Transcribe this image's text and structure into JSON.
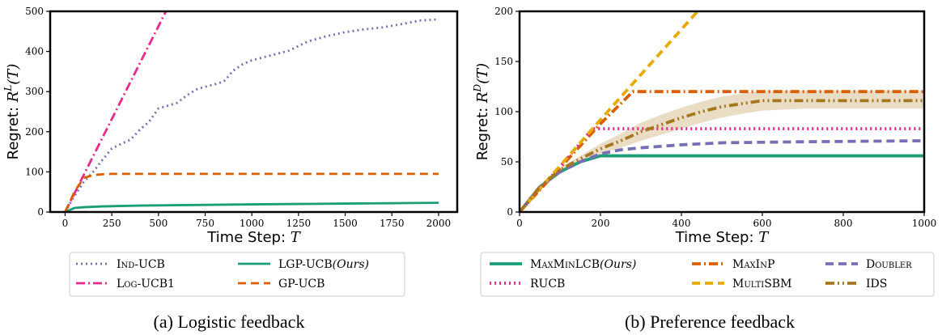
{
  "chart_data": [
    {
      "type": "line",
      "caption": "(a) Logistic feedback",
      "xlabel": "Time Step:",
      "xlabel_var": "T",
      "ylabel": "Regret:",
      "ylabel_var": "R",
      "ylabel_sup": "L",
      "ylabel_arg": "(T)",
      "xlim": [
        -80,
        2100
      ],
      "ylim": [
        0,
        500
      ],
      "xticks": [
        0,
        250,
        500,
        750,
        1000,
        1250,
        1500,
        1750,
        2000
      ],
      "yticks": [
        0,
        100,
        200,
        300,
        400,
        500
      ],
      "grid": false,
      "legend_position": "below",
      "series": [
        {
          "name": "Ind-UCB",
          "color": "#7570b3",
          "dash": "dotted",
          "x": [
            0,
            50,
            100,
            150,
            200,
            250,
            300,
            350,
            400,
            450,
            500,
            550,
            600,
            650,
            700,
            750,
            800,
            850,
            900,
            950,
            1000,
            1100,
            1200,
            1300,
            1400,
            1500,
            1600,
            1700,
            1800,
            1900,
            2000
          ],
          "y": [
            0,
            40,
            75,
            100,
            130,
            158,
            170,
            180,
            205,
            225,
            258,
            265,
            272,
            290,
            305,
            312,
            318,
            325,
            352,
            368,
            378,
            390,
            402,
            425,
            438,
            448,
            455,
            460,
            468,
            477,
            480
          ]
        },
        {
          "name": "Log-UCB1",
          "color": "#e7298a",
          "dash": "dashdot",
          "x": [
            0,
            540
          ],
          "y": [
            0,
            500
          ]
        },
        {
          "name": "LGP-UCB",
          "name_suffix": "(Ours)",
          "color": "#1b9e77",
          "dash": "solid",
          "x": [
            0,
            50,
            100,
            200,
            400,
            600,
            800,
            1000,
            1250,
            1500,
            1750,
            2000
          ],
          "y": [
            0,
            10,
            12,
            14,
            16,
            17,
            18,
            19,
            20,
            21,
            22,
            23
          ]
        },
        {
          "name": "GP-UCB",
          "color": "#d95f02",
          "dash": "dashed",
          "x": [
            0,
            50,
            100,
            150,
            200,
            250,
            300,
            500,
            1000,
            1500,
            2000
          ],
          "y": [
            0,
            50,
            85,
            92,
            94,
            95,
            95,
            95,
            95,
            95,
            95
          ]
        }
      ]
    },
    {
      "type": "line",
      "caption": "(b) Preference feedback",
      "xlabel": "Time Step:",
      "xlabel_var": "T",
      "ylabel": "Regret:",
      "ylabel_var": "R",
      "ylabel_sup": "D",
      "ylabel_arg": "(T)",
      "xlim": [
        0,
        1000
      ],
      "ylim": [
        0,
        200
      ],
      "xticks": [
        0,
        200,
        400,
        600,
        800,
        1000
      ],
      "yticks": [
        0,
        50,
        100,
        150,
        200
      ],
      "grid": false,
      "legend_position": "below",
      "series": [
        {
          "name": "MaxMinLCB",
          "name_suffix": "(Ours)",
          "color": "#1b9e77",
          "dash": "solid",
          "x": [
            0,
            50,
            100,
            150,
            200,
            220,
            300,
            500,
            700,
            1000
          ],
          "y": [
            0,
            25,
            40,
            50,
            56,
            56,
            56,
            56,
            56,
            56
          ]
        },
        {
          "name": "MaxInP",
          "color": "#d95f02",
          "dash": "dashdot",
          "x": [
            0,
            100,
            200,
            280,
            300,
            500,
            700,
            1000
          ],
          "y": [
            0,
            44,
            88,
            120,
            120,
            120,
            120,
            120
          ]
        },
        {
          "name": "Doubler",
          "color": "#7570b3",
          "dash": "dashed",
          "x": [
            0,
            50,
            100,
            150,
            200,
            250,
            300,
            400,
            500,
            700,
            1000
          ],
          "y": [
            0,
            25,
            40,
            50,
            58,
            62,
            64,
            67,
            69,
            70,
            71
          ]
        },
        {
          "name": "RUCB",
          "color": "#e7298a",
          "dash": "dotted",
          "x": [
            0,
            100,
            180,
            200,
            400,
            600,
            800,
            1000
          ],
          "y": [
            0,
            45,
            83,
            83,
            83,
            83,
            83,
            83
          ]
        },
        {
          "name": "MultiSBM",
          "color": "#e6ab02",
          "dash": "dashed",
          "x": [
            0,
            100,
            200,
            300,
            400,
            440
          ],
          "y": [
            0,
            46,
            92,
            137,
            182,
            200
          ]
        },
        {
          "name": "IDS",
          "color": "#a6761d",
          "dash": "dashdotdot",
          "x": [
            0,
            50,
            100,
            150,
            200,
            250,
            300,
            350,
            400,
            450,
            500,
            550,
            600,
            700,
            800,
            1000
          ],
          "y": [
            0,
            25,
            42,
            53,
            63,
            71,
            80,
            87,
            94,
            100,
            105,
            108,
            111,
            111,
            111,
            111
          ],
          "band_low": [
            0,
            24,
            40,
            50,
            58,
            64,
            71,
            77,
            83,
            89,
            94,
            98,
            101,
            103,
            103,
            103
          ],
          "band_high": [
            0,
            26,
            44,
            56,
            68,
            78,
            89,
            97,
            104,
            110,
            115,
            118,
            121,
            121,
            121,
            121
          ]
        }
      ]
    }
  ]
}
